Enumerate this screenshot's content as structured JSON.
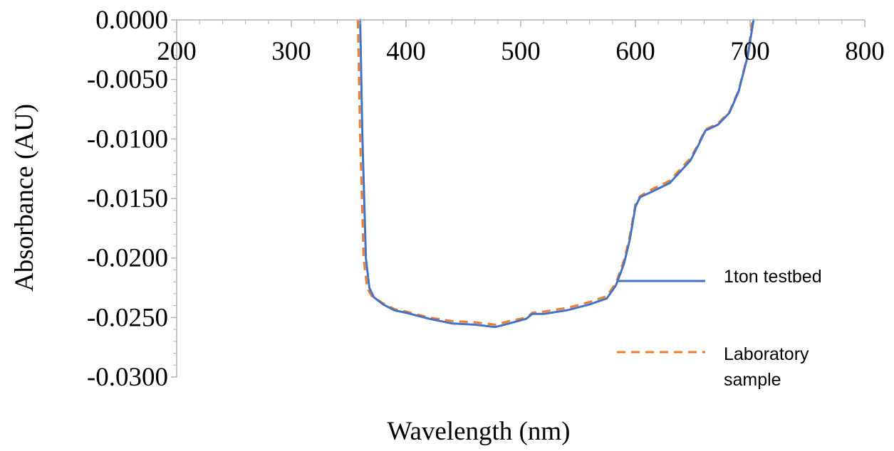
{
  "chart_data": {
    "type": "line",
    "title": "",
    "xlabel": "Wavelength (nm)",
    "ylabel": "Absorbance (AU)",
    "xlim": [
      200,
      800
    ],
    "ylim": [
      -0.03,
      0.0
    ],
    "x_ticks": [
      200,
      300,
      400,
      500,
      600,
      700,
      800
    ],
    "x_tick_labels": [
      "200",
      "300",
      "400",
      "500",
      "600",
      "700",
      "800"
    ],
    "y_ticks": [
      0.0,
      -0.005,
      -0.01,
      -0.015,
      -0.02,
      -0.025,
      -0.03
    ],
    "y_tick_labels": [
      "0.0000",
      "-0.0050",
      "-0.0100",
      "-0.0150",
      "-0.0200",
      "-0.0250",
      "-0.0300"
    ],
    "legend_position": "right",
    "grid": false,
    "series": [
      {
        "name": "1ton testbed",
        "color": "#4472c4",
        "dash": "solid",
        "x": [
          360,
          362,
          365,
          368,
          372,
          380,
          390,
          400,
          420,
          440,
          460,
          478,
          490,
          505,
          510,
          520,
          540,
          560,
          575,
          583,
          590,
          595,
          600,
          604,
          615,
          630,
          648,
          655,
          661,
          672,
          682,
          690,
          698,
          703
        ],
        "y": [
          0.0,
          -0.01,
          -0.02,
          -0.0225,
          -0.0233,
          -0.0239,
          -0.0244,
          -0.0246,
          -0.0251,
          -0.0255,
          -0.0256,
          -0.0258,
          -0.0255,
          -0.0251,
          -0.0247,
          -0.0247,
          -0.0244,
          -0.0239,
          -0.0234,
          -0.0223,
          -0.0205,
          -0.0185,
          -0.0157,
          -0.0149,
          -0.0144,
          -0.0137,
          -0.0118,
          -0.0105,
          -0.0093,
          -0.0088,
          -0.0078,
          -0.006,
          -0.003,
          0.0
        ]
      },
      {
        "name": "Laboratory sample",
        "color": "#ed7d31",
        "dash": "dashed",
        "x": [
          358,
          360,
          363,
          366,
          370,
          380,
          390,
          400,
          420,
          440,
          460,
          478,
          490,
          505,
          510,
          520,
          540,
          560,
          575,
          583,
          590,
          595,
          600,
          604,
          615,
          630,
          648,
          655,
          661,
          672,
          682,
          690,
          698,
          702
        ],
        "y": [
          0.0,
          -0.01,
          -0.02,
          -0.0225,
          -0.0232,
          -0.0238,
          -0.0243,
          -0.0245,
          -0.025,
          -0.0253,
          -0.0254,
          -0.0256,
          -0.0253,
          -0.025,
          -0.0246,
          -0.0245,
          -0.0242,
          -0.0237,
          -0.0232,
          -0.0221,
          -0.0202,
          -0.0182,
          -0.0155,
          -0.0148,
          -0.0142,
          -0.0135,
          -0.0116,
          -0.0104,
          -0.0092,
          -0.0087,
          -0.0077,
          -0.0059,
          -0.0029,
          0.0
        ]
      }
    ]
  },
  "legend": {
    "items": [
      {
        "lines": [
          "1ton testbed"
        ]
      },
      {
        "lines": [
          "Laboratory",
          "sample"
        ]
      }
    ]
  }
}
